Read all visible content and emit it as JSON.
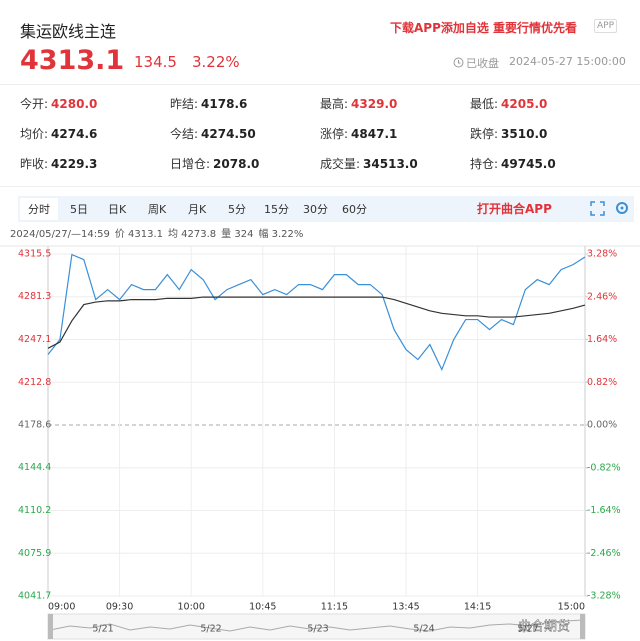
{
  "header": {
    "title": "集运欧线主连",
    "promo": "下载APP添加自选  重要行情优先看",
    "app_badge": "APP",
    "price": "4313.1",
    "change": "134.5",
    "change_pct": "3.22%",
    "status": "已收盘",
    "time": "2024-05-27 15:00:00"
  },
  "stats": [
    {
      "label": "今开:",
      "value": "4280.0",
      "color": "#e0343a"
    },
    {
      "label": "昨结:",
      "value": "4178.6",
      "color": "#222"
    },
    {
      "label": "最高:",
      "value": "4329.0",
      "color": "#e0343a"
    },
    {
      "label": "最低:",
      "value": "4205.0",
      "color": "#e0343a"
    },
    {
      "label": "均价:",
      "value": "4274.6",
      "color": "#222"
    },
    {
      "label": "今结:",
      "value": "4274.50",
      "color": "#222"
    },
    {
      "label": "涨停:",
      "value": "4847.1",
      "color": "#222"
    },
    {
      "label": "跌停:",
      "value": "3510.0",
      "color": "#222"
    },
    {
      "label": "昨收:",
      "value": "4229.3",
      "color": "#222"
    },
    {
      "label": "日增仓:",
      "value": "2078.0",
      "color": "#222"
    },
    {
      "label": "成交量:",
      "value": "34513.0",
      "color": "#222"
    },
    {
      "label": "持仓:",
      "value": "49745.0",
      "color": "#222"
    }
  ],
  "tabs": [
    "分时",
    "5日",
    "日K",
    "周K",
    "月K",
    "5分",
    "15分",
    "30分",
    "60分"
  ],
  "open_app": "打开曲合APP",
  "info": [
    "2024/05/27/—14:59",
    "价 4313.1",
    "均 4273.8",
    "量 324",
    "幅 3.22%"
  ],
  "chart_data": {
    "type": "line",
    "x": [
      0,
      5,
      10,
      15,
      20,
      25,
      30,
      35,
      40,
      45,
      50,
      55,
      60,
      65,
      70,
      75,
      80,
      85,
      90,
      95,
      100,
      105,
      110,
      115,
      120,
      125,
      130,
      135,
      140,
      145,
      150,
      155,
      160,
      165,
      170,
      175,
      180,
      185,
      190,
      195,
      200,
      205,
      210,
      215,
      220,
      225
    ],
    "series": [
      {
        "name": "价",
        "color": "#3a8fd9",
        "values": [
          4235,
          4247,
          4315,
          4311,
          4279,
          4287,
          4279,
          4291,
          4287,
          4287,
          4299,
          4287,
          4303,
          4295,
          4279,
          4287,
          4291,
          4295,
          4283,
          4287,
          4283,
          4291,
          4291,
          4287,
          4299,
          4299,
          4291,
          4291,
          4283,
          4255,
          4239,
          4231,
          4243,
          4223,
          4247,
          4263,
          4263,
          4255,
          4263,
          4259,
          4287,
          4295,
          4291,
          4303,
          4307,
          4313.1
        ]
      },
      {
        "name": "均",
        "color": "#333333",
        "values": [
          4240,
          4245,
          4262,
          4275,
          4277,
          4278,
          4278,
          4279,
          4279,
          4279,
          4280,
          4280,
          4280,
          4281,
          4281,
          4281,
          4281,
          4281,
          4281,
          4281,
          4281,
          4281,
          4281,
          4281,
          4281,
          4281,
          4281,
          4281,
          4281,
          4279,
          4276,
          4273,
          4270,
          4268,
          4267,
          4266,
          4266,
          4265,
          4265,
          4265,
          4266,
          4267,
          4268,
          4270,
          4272,
          4274.6
        ]
      }
    ],
    "xlim": [
      0,
      225
    ],
    "xticks": [
      {
        "value": 0,
        "label": "09:00"
      },
      {
        "value": 30,
        "label": "09:30"
      },
      {
        "value": 60,
        "label": "10:00"
      },
      {
        "value": 90,
        "label": "10:45"
      },
      {
        "value": 120,
        "label": "11:15"
      },
      {
        "value": 150,
        "label": "13:45"
      },
      {
        "value": 180,
        "label": "14:15"
      },
      {
        "value": 225,
        "label": "15:00"
      }
    ],
    "ylim": [
      4041.7,
      4315.5
    ],
    "yticks": [
      4315.5,
      4281.3,
      4247.1,
      4212.8,
      4178.6,
      4144.4,
      4110.2,
      4075.9,
      4041.7
    ],
    "y2lim": [
      -3.28,
      3.28
    ],
    "y2ticks": [
      {
        "value": 3.28,
        "label": "3.28%"
      },
      {
        "value": 2.46,
        "label": "2.46%"
      },
      {
        "value": 1.64,
        "label": "1.64%"
      },
      {
        "value": 0.82,
        "label": "0.82%"
      },
      {
        "value": 0,
        "label": "0.00%"
      },
      {
        "value": -0.82,
        "label": "-0.82%"
      },
      {
        "value": -1.64,
        "label": "-1.64%"
      },
      {
        "value": -2.46,
        "label": "-2.46%"
      },
      {
        "value": -3.28,
        "label": "-3.28%"
      }
    ],
    "up_color": "#e0343a",
    "down_color": "#2ba84a",
    "flat_color": "#666666",
    "grid": true
  },
  "navigator": {
    "dates": [
      "5/21",
      "5/22",
      "5/23",
      "5/24",
      "5/27"
    ]
  },
  "watermark": "曲合期货"
}
